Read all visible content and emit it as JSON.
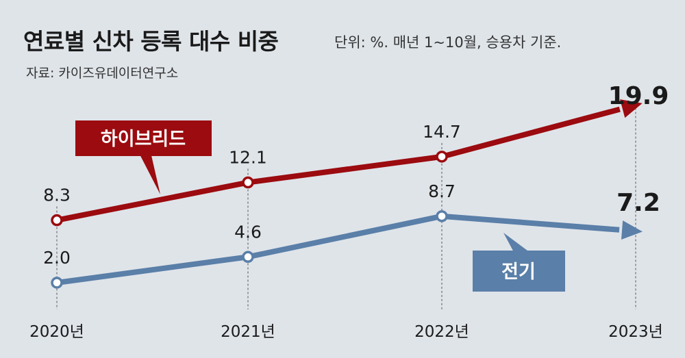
{
  "header": {
    "title": "연료별 신차 등록 대수 비중",
    "unit": "단위: %. 매년 1~10월, 승용차 기준.",
    "source": "자료: 카이즈유데이터연구소"
  },
  "colors": {
    "background": "#dfe4e9",
    "hybrid": "#9b0b0f",
    "electric": "#5a7fa8"
  },
  "chart_data": {
    "type": "line",
    "categories": [
      "2020년",
      "2021년",
      "2022년",
      "2023년"
    ],
    "ylim": [
      0,
      22
    ],
    "grid": false,
    "legend": "callout labels",
    "series": [
      {
        "name": "하이브리드",
        "values": [
          8.3,
          12.1,
          14.7,
          19.9
        ],
        "labels": [
          "8.3",
          "12.1",
          "14.7",
          "19.9"
        ],
        "color": "#9b0b0f"
      },
      {
        "name": "전기",
        "values": [
          2.0,
          4.6,
          8.7,
          7.2
        ],
        "labels": [
          "2.0",
          "4.6",
          "8.7",
          "7.2"
        ],
        "color": "#5a7fa8"
      }
    ]
  }
}
